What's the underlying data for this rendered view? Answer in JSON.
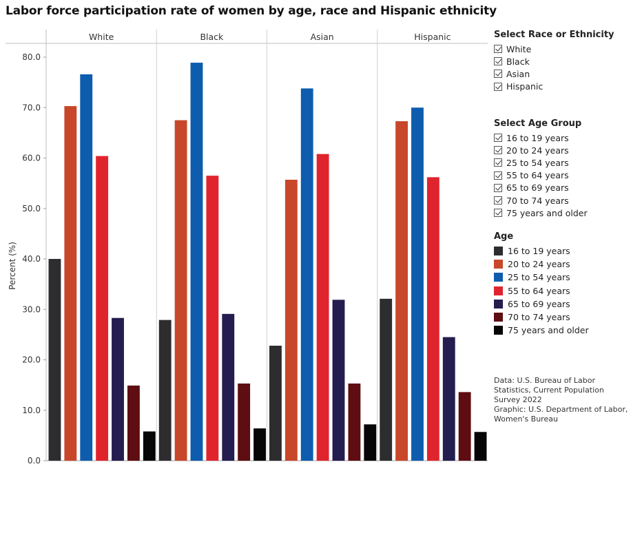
{
  "title": "Labor force participation rate of women by age, race and Hispanic ethnicity",
  "chart_data": {
    "type": "bar",
    "title": "Labor force participation rate of women by age, race and Hispanic ethnicity",
    "ylabel": "Percent (%)",
    "xlabel": "",
    "ylim": [
      0,
      80
    ],
    "yticks": [
      "0.0",
      "10.0",
      "20.0",
      "30.0",
      "40.0",
      "50.0",
      "60.0",
      "70.0",
      "80.0"
    ],
    "categories": [
      "White",
      "Black",
      "Asian",
      "Hispanic"
    ],
    "series": [
      {
        "name": "16 to 19 years",
        "color": "#2d2d30",
        "values": [
          40.0,
          27.9,
          22.8,
          32.1
        ]
      },
      {
        "name": "20 to 24 years",
        "color": "#c8472a",
        "values": [
          70.3,
          67.5,
          55.7,
          67.3
        ]
      },
      {
        "name": "25 to 54 years",
        "color": "#0e5cad",
        "values": [
          76.6,
          78.9,
          73.8,
          70.0
        ]
      },
      {
        "name": "55 to 64 years",
        "color": "#e0242e",
        "values": [
          60.4,
          56.5,
          60.8,
          56.2
        ]
      },
      {
        "name": "65 to 69 years",
        "color": "#241d4f",
        "values": [
          28.3,
          29.1,
          31.9,
          24.5
        ]
      },
      {
        "name": "70 to 74 years",
        "color": "#5e0d12",
        "values": [
          14.9,
          15.3,
          15.3,
          13.6
        ]
      },
      {
        "name": "75 years and older",
        "color": "#060606",
        "values": [
          5.8,
          6.4,
          7.2,
          5.7
        ]
      }
    ]
  },
  "filters": {
    "race": {
      "title": "Select Race or Ethnicity",
      "options": [
        "White",
        "Black",
        "Asian",
        "Hispanic"
      ]
    },
    "age": {
      "title": "Select Age Group",
      "options": [
        "16 to 19 years",
        "20 to 24 years",
        "25 to 54 years",
        "55 to 64 years",
        "65 to 69 years",
        "70 to 74 years",
        "75 years and older"
      ]
    }
  },
  "legend": {
    "title": "Age",
    "items": [
      "16 to 19 years",
      "20 to 24 years",
      "25 to 54 years",
      "55 to 64 years",
      "65 to 69 years",
      "70 to 74 years",
      "75 years and older"
    ]
  },
  "source": {
    "data": "Data: U.S. Bureau of Labor Statistics, Current Population Survey 2022",
    "graphic": "Graphic: U.S. Department of Labor, Women's Bureau"
  }
}
